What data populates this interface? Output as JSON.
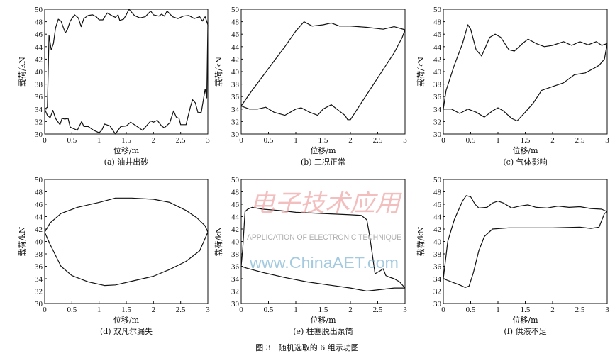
{
  "figure_caption": "图 3　随机选取的 6 组示功图",
  "watermark": {
    "chinese": "电子技术应用",
    "english": "APPLICATION OF ELECTRONIC TECHNIQUE",
    "url": "www.ChinaAET.com"
  },
  "line_color": "#111111",
  "chart_data": [
    {
      "type": "line",
      "title": "(a) 油井出砂",
      "xlabel": "位移/m",
      "ylabel": "载荷/kN",
      "xlim": [
        0,
        3
      ],
      "ylim": [
        30,
        50
      ],
      "xticks": [
        "0",
        "0.5",
        "1",
        "1.5",
        "2",
        "2.5",
        "3"
      ],
      "yticks": [
        "30",
        "32",
        "34",
        "36",
        "38",
        "40",
        "42",
        "44",
        "46",
        "48",
        "50"
      ],
      "grid": false,
      "series": [
        {
          "x": [
            0,
            0.05,
            0.08,
            0.12,
            0.16,
            0.2,
            0.25,
            0.3,
            0.38,
            0.42,
            0.47,
            0.55,
            0.62,
            0.67,
            0.72,
            0.8,
            0.88,
            0.95,
            1,
            1.07,
            1.15,
            1.25,
            1.3,
            1.35,
            1.38,
            1.45,
            1.5,
            1.55,
            1.65,
            1.75,
            1.85,
            1.95,
            2,
            2.1,
            2.15,
            2.2,
            2.25,
            2.35,
            2.45,
            2.55,
            2.65,
            2.75,
            2.85,
            2.9,
            2.95,
            3
          ],
          "y": [
            34,
            34.3,
            45.8,
            43.5,
            44.5,
            47,
            48.4,
            48.1,
            46.2,
            46.8,
            48.1,
            49.1,
            48.6,
            47.2,
            48.5,
            49,
            49.1,
            48.8,
            48.3,
            48.3,
            49.4,
            48.9,
            48.7,
            49.1,
            48.2,
            48.4,
            49.1,
            50,
            49,
            48.6,
            48.8,
            49.7,
            49.1,
            48.9,
            49.2,
            48.9,
            49.7,
            48.8,
            48.5,
            48.9,
            49,
            48.5,
            48.8,
            48.1,
            48.8,
            47.5
          ]
        },
        {
          "x": [
            0,
            0.05,
            0.1,
            0.15,
            0.2,
            0.28,
            0.32,
            0.37,
            0.43,
            0.47,
            0.6,
            0.68,
            0.72,
            0.8,
            0.9,
            1,
            1.05,
            1.1,
            1.2,
            1.3,
            1.4,
            1.5,
            1.58,
            1.7,
            1.8,
            1.95,
            2,
            2.07,
            2.15,
            2.2,
            2.3,
            2.37,
            2.42,
            2.47,
            2.5,
            2.6,
            2.68,
            2.72,
            2.77,
            2.82,
            2.88,
            2.95,
            2.98,
            3
          ],
          "y": [
            34,
            33,
            32.6,
            33.8,
            32.5,
            31.5,
            32.5,
            32.4,
            32.5,
            31.1,
            30.6,
            32,
            31.2,
            31.2,
            30.6,
            30.2,
            30.6,
            31.6,
            31.3,
            30,
            31.2,
            31.3,
            31.9,
            31.2,
            30.6,
            32.1,
            31.9,
            32.2,
            31.3,
            31,
            31.8,
            33.7,
            32.7,
            32.5,
            31.5,
            31.5,
            34.4,
            35.5,
            35,
            33.4,
            33.5,
            37.2,
            35.8,
            47.5
          ]
        }
      ]
    },
    {
      "type": "line",
      "title": "(b) 工况正常",
      "xlabel": "位移/m",
      "ylabel": "载荷/kN",
      "xlim": [
        0,
        3
      ],
      "ylim": [
        30,
        50
      ],
      "xticks": [
        "0",
        "0.5",
        "1",
        "1.5",
        "2",
        "2.5",
        "3"
      ],
      "yticks": [
        "30",
        "32",
        "34",
        "36",
        "38",
        "40",
        "42",
        "44",
        "46",
        "48",
        "50"
      ],
      "grid": false,
      "series": [
        {
          "x": [
            0,
            0.2,
            0.5,
            0.8,
            1,
            1.15,
            1.3,
            1.5,
            1.65,
            1.8,
            2,
            2.3,
            2.6,
            2.8,
            3
          ],
          "y": [
            34.5,
            37,
            40.5,
            44,
            46.5,
            48,
            47.3,
            47.5,
            47.8,
            47.3,
            47.3,
            47.1,
            46.8,
            47.2,
            46.7
          ]
        },
        {
          "x": [
            0,
            0.15,
            0.3,
            0.45,
            0.6,
            0.8,
            1,
            1.1,
            1.25,
            1.4,
            1.5,
            1.65,
            1.75,
            1.9,
            1.95,
            2,
            2.2,
            2.5,
            2.8,
            2.95,
            3
          ],
          "y": [
            34.5,
            34,
            34,
            34.3,
            33.5,
            33,
            34,
            34.2,
            33.5,
            33,
            34,
            34.7,
            34,
            33,
            32.3,
            32.3,
            35,
            39,
            43,
            45.5,
            46.7
          ]
        }
      ]
    },
    {
      "type": "line",
      "title": "(c) 气体影响",
      "xlabel": "位移/m",
      "ylabel": "载荷/kN",
      "xlim": [
        0,
        3
      ],
      "ylim": [
        30,
        50
      ],
      "xticks": [
        "0",
        "0.5",
        "1",
        "1.5",
        "2",
        "2.5",
        "3"
      ],
      "yticks": [
        "30",
        "32",
        "34",
        "36",
        "38",
        "40",
        "42",
        "44",
        "46",
        "48",
        "50"
      ],
      "grid": false,
      "series": [
        {
          "x": [
            0,
            0.05,
            0.2,
            0.35,
            0.45,
            0.5,
            0.6,
            0.7,
            0.75,
            0.85,
            0.95,
            1.05,
            1.2,
            1.3,
            1.45,
            1.55,
            1.7,
            1.85,
            2,
            2.2,
            2.35,
            2.5,
            2.65,
            2.8,
            2.9,
            3
          ],
          "y": [
            34,
            37,
            41,
            44.5,
            47.5,
            46.8,
            43.5,
            42.5,
            43.5,
            45.5,
            46,
            45.5,
            43.5,
            43.3,
            44.5,
            45.2,
            44.5,
            44,
            44.2,
            44.8,
            44.2,
            44.8,
            44.3,
            44.8,
            44.2,
            44.5
          ]
        },
        {
          "x": [
            0,
            0.15,
            0.3,
            0.45,
            0.6,
            0.75,
            0.9,
            1,
            1.1,
            1.25,
            1.35,
            1.5,
            1.65,
            1.8,
            2,
            2.2,
            2.4,
            2.6,
            2.75,
            2.85,
            2.95,
            3
          ],
          "y": [
            34,
            34,
            33.3,
            34,
            33.5,
            32.7,
            33.7,
            34.2,
            33.7,
            32.5,
            32.1,
            33.5,
            35,
            37,
            37.6,
            38.2,
            39.5,
            39.8,
            40.5,
            41,
            42,
            44.5
          ]
        }
      ]
    },
    {
      "type": "line",
      "title": "(d) 双凡尔漏失",
      "xlabel": "位移/m",
      "ylabel": "载荷/kN",
      "xlim": [
        0,
        3
      ],
      "ylim": [
        30,
        50
      ],
      "xticks": [
        "0",
        "0.5",
        "1",
        "1.5",
        "2",
        "2.5",
        "3"
      ],
      "yticks": [
        "30",
        "32",
        "34",
        "36",
        "38",
        "40",
        "42",
        "44",
        "46",
        "48",
        "50"
      ],
      "grid": false,
      "series": [
        {
          "x": [
            0,
            0.1,
            0.3,
            0.6,
            1,
            1.3,
            1.6,
            2,
            2.3,
            2.6,
            2.8,
            2.95,
            3
          ],
          "y": [
            41.5,
            43,
            44.5,
            45.5,
            46.3,
            47,
            47,
            46.8,
            46.3,
            45,
            43.8,
            42.5,
            41.5
          ]
        },
        {
          "x": [
            0,
            0.1,
            0.3,
            0.5,
            0.8,
            1.1,
            1.3,
            1.6,
            2,
            2.3,
            2.6,
            2.85,
            3
          ],
          "y": [
            41.5,
            39.5,
            36,
            34.5,
            33.5,
            32.9,
            33,
            33.6,
            34.4,
            35.5,
            36.8,
            38.5,
            41.5
          ]
        }
      ]
    },
    {
      "type": "line",
      "title": "(e) 柱塞脱出泵筒",
      "xlabel": "位移/m",
      "ylabel": "载荷/kN",
      "xlim": [
        0,
        3
      ],
      "ylim": [
        30,
        50
      ],
      "xticks": [
        "0",
        "0.5",
        "1",
        "1.5",
        "2",
        "2.5",
        "3"
      ],
      "yticks": [
        "30",
        "32",
        "34",
        "36",
        "38",
        "40",
        "42",
        "44",
        "46",
        "48",
        "50"
      ],
      "grid": false,
      "series": [
        {
          "x": [
            0,
            0.03,
            0.07,
            0.12,
            0.2,
            0.4,
            0.7,
            1,
            1.5,
            2,
            2.2,
            2.3,
            2.35,
            2.4,
            2.45,
            2.55,
            2.6,
            2.65,
            2.7,
            2.8,
            2.9,
            3
          ],
          "y": [
            36,
            39,
            44.8,
            45.2,
            45.5,
            45.2,
            45,
            44.7,
            44.5,
            44.3,
            44.2,
            43.5,
            41,
            38,
            34.8,
            35.3,
            35.6,
            34.5,
            34.3,
            34,
            33.5,
            32.5
          ]
        },
        {
          "x": [
            0,
            0.1,
            0.4,
            0.8,
            1.2,
            1.6,
            2,
            2.3,
            2.6,
            2.8,
            3
          ],
          "y": [
            36,
            35.7,
            35,
            34.2,
            33.5,
            33,
            32.5,
            32,
            32.3,
            32.5,
            32.5
          ]
        }
      ]
    },
    {
      "type": "line",
      "title": "(f) 供液不足",
      "xlabel": "位移/m",
      "ylabel": "载荷/kN",
      "xlim": [
        0,
        3
      ],
      "ylim": [
        30,
        50
      ],
      "xticks": [
        "0",
        "0.5",
        "1",
        "1.5",
        "2",
        "2.5",
        "3"
      ],
      "yticks": [
        "30",
        "32",
        "34",
        "36",
        "38",
        "40",
        "42",
        "44",
        "46",
        "48",
        "50"
      ],
      "grid": false,
      "series": [
        {
          "x": [
            0,
            0.08,
            0.2,
            0.35,
            0.42,
            0.5,
            0.58,
            0.65,
            0.8,
            0.9,
            1,
            1.1,
            1.25,
            1.4,
            1.55,
            1.7,
            1.9,
            2.1,
            2.3,
            2.5,
            2.7,
            2.9,
            3
          ],
          "y": [
            34,
            40,
            43.5,
            46.5,
            47.4,
            47.2,
            46,
            45.4,
            45.5,
            46.2,
            46.5,
            46.2,
            45.4,
            45.7,
            45.9,
            45.5,
            45.4,
            45.7,
            45.5,
            45.6,
            45.3,
            45.2,
            44.8
          ]
        },
        {
          "x": [
            0,
            0.15,
            0.3,
            0.4,
            0.47,
            0.55,
            0.65,
            0.75,
            0.9,
            1.2,
            1.6,
            2,
            2.5,
            2.7,
            2.85,
            2.95,
            3
          ],
          "y": [
            34,
            33.5,
            33,
            32.6,
            32.8,
            35,
            38.5,
            40.8,
            42,
            42.2,
            42.2,
            42.2,
            42.3,
            42.1,
            42.3,
            44.5,
            44.8
          ]
        }
      ]
    }
  ]
}
